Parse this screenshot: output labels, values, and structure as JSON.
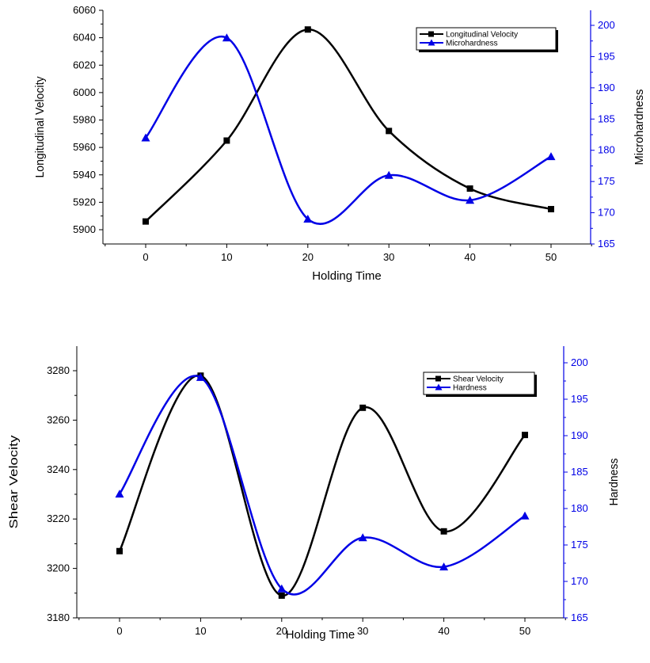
{
  "colors": {
    "series_black": "#000000",
    "series_blue": "#0000e6"
  },
  "chart_data": [
    {
      "type": "line",
      "x": [
        0,
        10,
        20,
        30,
        40,
        50
      ],
      "xlabel": "Holding Time",
      "xlim": [
        -5,
        55
      ],
      "x_ticks": [
        "0",
        "10",
        "20",
        "30",
        "40",
        "50"
      ],
      "ylabel": "Longitudinal Velocity",
      "ylim": [
        5890,
        6060
      ],
      "y_ticks": [
        "5900",
        "5920",
        "5940",
        "5960",
        "5980",
        "6000",
        "6020",
        "6040",
        "6060"
      ],
      "y2label": "Microhardness",
      "y2lim": [
        165,
        202
      ],
      "y2_ticks": [
        "165",
        "170",
        "175",
        "180",
        "185",
        "190",
        "195",
        "200"
      ],
      "legend_position": "top-right",
      "series": [
        {
          "name": "Longitudinal Velocity",
          "axis": "left",
          "marker": "square",
          "color": "#000000",
          "values": [
            5906,
            5965,
            6046,
            5972,
            5930,
            5915
          ]
        },
        {
          "name": "Microhardness",
          "axis": "right",
          "marker": "triangle",
          "color": "#0000e6",
          "values": [
            182,
            198,
            169,
            176,
            172,
            179
          ]
        }
      ]
    },
    {
      "type": "line",
      "x": [
        0,
        10,
        20,
        30,
        40,
        50
      ],
      "xlabel": "Holding Time",
      "xlim": [
        -5,
        55
      ],
      "x_ticks": [
        "0",
        "10",
        "20",
        "30",
        "40",
        "50"
      ],
      "ylabel": "Shear Velocity",
      "ylim": [
        3180,
        3285
      ],
      "y_ticks": [
        "3180",
        "3200",
        "3220",
        "3240",
        "3260",
        "3280"
      ],
      "y2label": "Hardness",
      "y2lim": [
        165,
        202
      ],
      "y2_ticks": [
        "165",
        "170",
        "175",
        "180",
        "185",
        "190",
        "195",
        "200"
      ],
      "legend_position": "top-right",
      "series": [
        {
          "name": "Shear Velocity",
          "axis": "left",
          "marker": "square",
          "color": "#000000",
          "values": [
            3207,
            3278,
            3189,
            3265,
            3215,
            3254
          ]
        },
        {
          "name": "Hardness",
          "axis": "right",
          "marker": "triangle",
          "color": "#0000e6",
          "values": [
            182,
            198,
            169,
            176,
            172,
            179
          ]
        }
      ]
    }
  ]
}
